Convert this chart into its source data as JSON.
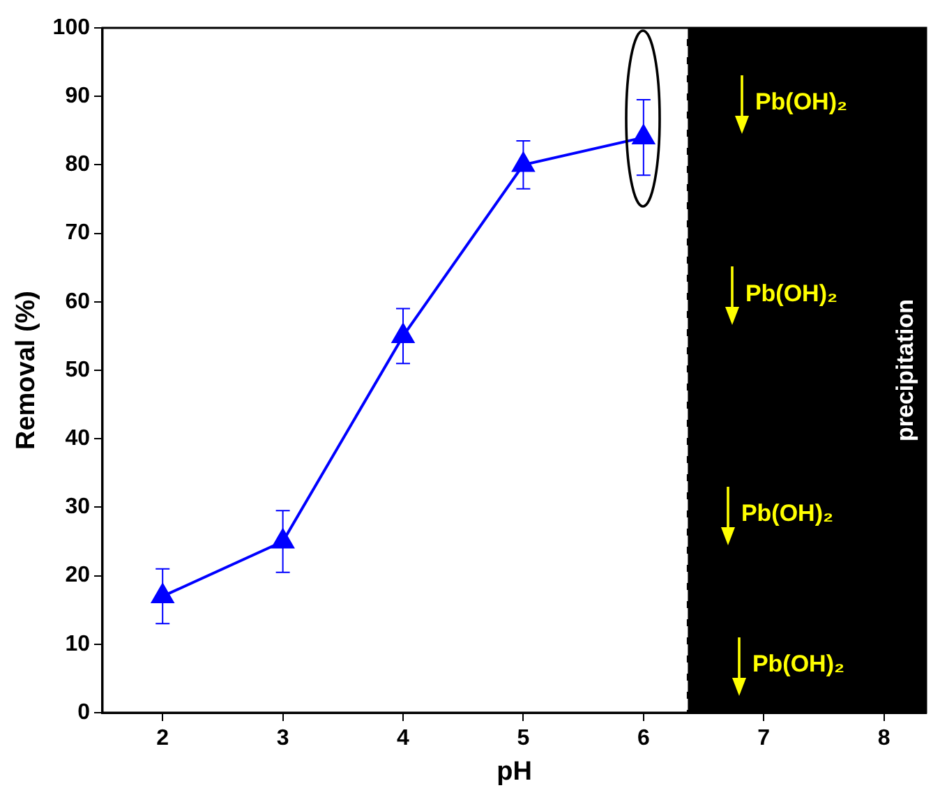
{
  "chart_data": {
    "type": "line",
    "xlabel": "pH",
    "ylabel": "Removal (%)",
    "x": [
      2,
      3,
      4,
      5,
      6
    ],
    "series": [
      {
        "color": "#0000ff",
        "values": [
          17,
          25,
          55,
          80,
          84
        ],
        "errors": [
          4,
          4.5,
          4,
          3.5,
          5.5
        ]
      }
    ],
    "xlim": [
      1.5,
      8.35
    ],
    "xticks": [
      2,
      3,
      4,
      5,
      6,
      7,
      8
    ],
    "ylim": [
      0,
      100
    ],
    "yticks": [
      0,
      10,
      20,
      30,
      40,
      50,
      60,
      70,
      80,
      90,
      100
    ],
    "bands": [
      {
        "axis": "x",
        "from": 6.36,
        "to": 8.35,
        "label": "precipitation",
        "color": "#000000"
      }
    ],
    "ref_lines": [
      {
        "axis": "x",
        "value": 6.36,
        "color": "#ffffff",
        "line_style": "dashed"
      }
    ],
    "annotations": [
      "Pb(OH)₂",
      "Pb(OH)₂",
      "Pb(OH)₂",
      "Pb(OH)₂"
    ],
    "grid": false,
    "legend": false,
    "marker": "triangle",
    "line_style": "solid"
  }
}
